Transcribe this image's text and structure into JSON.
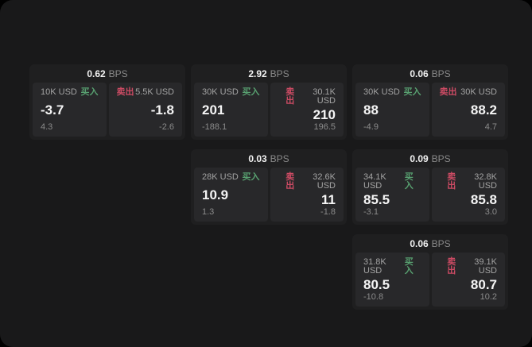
{
  "labels": {
    "bps_unit": "BPS",
    "buy": "买入",
    "sell": "卖出"
  },
  "colors": {
    "surface": "#19191a",
    "card": "#1f1f20",
    "panel": "#28282a",
    "buy_green": "#58a070",
    "sell_red": "#cd4b64"
  },
  "cards": [
    {
      "bps": "0.62",
      "buy": {
        "size": "10K USD",
        "price": "-3.7",
        "delta": "4.3"
      },
      "sell": {
        "size": "5.5K USD",
        "price": "-1.8",
        "delta": "-2.6"
      }
    },
    {
      "bps": "2.92",
      "buy": {
        "size": "30K USD",
        "price": "201",
        "delta": "-188.1"
      },
      "sell": {
        "size": "30.1K USD",
        "price": "210",
        "delta": "196.5"
      }
    },
    {
      "bps": "0.06",
      "buy": {
        "size": "30K USD",
        "price": "88",
        "delta": "-4.9"
      },
      "sell": {
        "size": "30K USD",
        "price": "88.2",
        "delta": "4.7"
      }
    },
    {
      "bps": "0.03",
      "buy": {
        "size": "28K USD",
        "price": "10.9",
        "delta": "1.3"
      },
      "sell": {
        "size": "32.6K USD",
        "price": "11",
        "delta": "-1.8"
      }
    },
    {
      "bps": "0.09",
      "buy": {
        "size": "34.1K USD",
        "price": "85.5",
        "delta": "-3.1"
      },
      "sell": {
        "size": "32.8K USD",
        "price": "85.8",
        "delta": "3.0"
      }
    },
    {
      "bps": "0.06",
      "buy": {
        "size": "31.8K USD",
        "price": "80.5",
        "delta": "-10.8"
      },
      "sell": {
        "size": "39.1K USD",
        "price": "80.7",
        "delta": "10.2"
      }
    }
  ]
}
